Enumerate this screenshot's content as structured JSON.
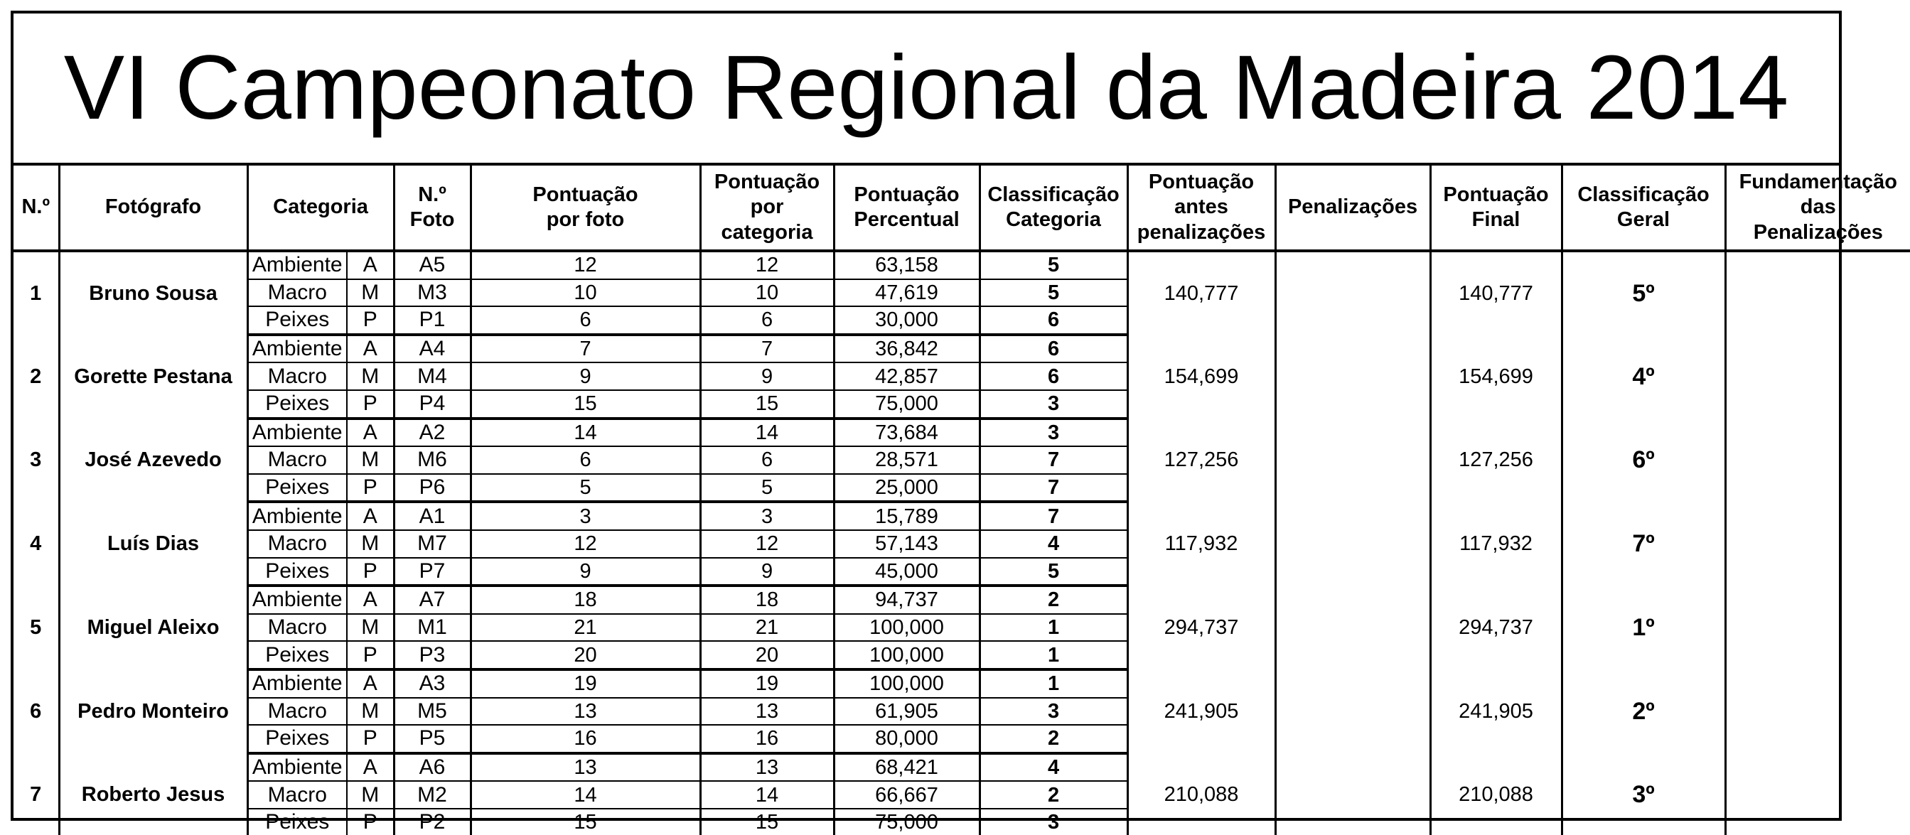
{
  "title": "VI Campeonato Regional da Madeira 2014",
  "headers": {
    "num": "N.º",
    "fotografo": "Fotógrafo",
    "categoria": "Categoria",
    "n_foto": [
      "N.º",
      "Foto"
    ],
    "pont_foto": [
      "Pontuação",
      "por foto"
    ],
    "pont_cat": [
      "Pontuação",
      "por",
      "categoria"
    ],
    "pont_perc": [
      "Pontuação",
      "Percentual"
    ],
    "class_cat": [
      "Classificação",
      "Categoria"
    ],
    "pont_antes": [
      "Pontuação",
      "antes",
      "penalizações"
    ],
    "penalizacoes": "Penalizações",
    "pont_final": [
      "Pontuação",
      "Final"
    ],
    "class_geral": [
      "Classificação",
      "Geral"
    ],
    "fundamentacao": [
      "Fundamentação",
      "das",
      "Penalizações"
    ]
  },
  "participants": [
    {
      "num": "1",
      "name": "Bruno Sousa",
      "before": "140,777",
      "penalty": "",
      "final": "140,777",
      "geral": "5º",
      "reason": "",
      "rows": [
        {
          "category": "Ambiente",
          "letter": "A",
          "code": "A5",
          "score_photo": "12",
          "score_cat": "12",
          "percent": "63,158",
          "class": "5"
        },
        {
          "category": "Macro",
          "letter": "M",
          "code": "M3",
          "score_photo": "10",
          "score_cat": "10",
          "percent": "47,619",
          "class": "5"
        },
        {
          "category": "Peixes",
          "letter": "P",
          "code": "P1",
          "score_photo": "6",
          "score_cat": "6",
          "percent": "30,000",
          "class": "6"
        }
      ]
    },
    {
      "num": "2",
      "name": "Gorette Pestana",
      "before": "154,699",
      "penalty": "",
      "final": "154,699",
      "geral": "4º",
      "reason": "",
      "rows": [
        {
          "category": "Ambiente",
          "letter": "A",
          "code": "A4",
          "score_photo": "7",
          "score_cat": "7",
          "percent": "36,842",
          "class": "6"
        },
        {
          "category": "Macro",
          "letter": "M",
          "code": "M4",
          "score_photo": "9",
          "score_cat": "9",
          "percent": "42,857",
          "class": "6"
        },
        {
          "category": "Peixes",
          "letter": "P",
          "code": "P4",
          "score_photo": "15",
          "score_cat": "15",
          "percent": "75,000",
          "class": "3"
        }
      ]
    },
    {
      "num": "3",
      "name": "José Azevedo",
      "before": "127,256",
      "penalty": "",
      "final": "127,256",
      "geral": "6º",
      "reason": "",
      "rows": [
        {
          "category": "Ambiente",
          "letter": "A",
          "code": "A2",
          "score_photo": "14",
          "score_cat": "14",
          "percent": "73,684",
          "class": "3"
        },
        {
          "category": "Macro",
          "letter": "M",
          "code": "M6",
          "score_photo": "6",
          "score_cat": "6",
          "percent": "28,571",
          "class": "7"
        },
        {
          "category": "Peixes",
          "letter": "P",
          "code": "P6",
          "score_photo": "5",
          "score_cat": "5",
          "percent": "25,000",
          "class": "7"
        }
      ]
    },
    {
      "num": "4",
      "name": "Luís Dias",
      "before": "117,932",
      "penalty": "",
      "final": "117,932",
      "geral": "7º",
      "reason": "",
      "rows": [
        {
          "category": "Ambiente",
          "letter": "A",
          "code": "A1",
          "score_photo": "3",
          "score_cat": "3",
          "percent": "15,789",
          "class": "7"
        },
        {
          "category": "Macro",
          "letter": "M",
          "code": "M7",
          "score_photo": "12",
          "score_cat": "12",
          "percent": "57,143",
          "class": "4"
        },
        {
          "category": "Peixes",
          "letter": "P",
          "code": "P7",
          "score_photo": "9",
          "score_cat": "9",
          "percent": "45,000",
          "class": "5"
        }
      ]
    },
    {
      "num": "5",
      "name": "Miguel Aleixo",
      "before": "294,737",
      "penalty": "",
      "final": "294,737",
      "geral": "1º",
      "reason": "",
      "rows": [
        {
          "category": "Ambiente",
          "letter": "A",
          "code": "A7",
          "score_photo": "18",
          "score_cat": "18",
          "percent": "94,737",
          "class": "2"
        },
        {
          "category": "Macro",
          "letter": "M",
          "code": "M1",
          "score_photo": "21",
          "score_cat": "21",
          "percent": "100,000",
          "class": "1"
        },
        {
          "category": "Peixes",
          "letter": "P",
          "code": "P3",
          "score_photo": "20",
          "score_cat": "20",
          "percent": "100,000",
          "class": "1"
        }
      ]
    },
    {
      "num": "6",
      "name": "Pedro Monteiro",
      "before": "241,905",
      "penalty": "",
      "final": "241,905",
      "geral": "2º",
      "reason": "",
      "rows": [
        {
          "category": "Ambiente",
          "letter": "A",
          "code": "A3",
          "score_photo": "19",
          "score_cat": "19",
          "percent": "100,000",
          "class": "1"
        },
        {
          "category": "Macro",
          "letter": "M",
          "code": "M5",
          "score_photo": "13",
          "score_cat": "13",
          "percent": "61,905",
          "class": "3"
        },
        {
          "category": "Peixes",
          "letter": "P",
          "code": "P5",
          "score_photo": "16",
          "score_cat": "16",
          "percent": "80,000",
          "class": "2"
        }
      ]
    },
    {
      "num": "7",
      "name": "Roberto Jesus",
      "before": "210,088",
      "penalty": "",
      "final": "210,088",
      "geral": "3º",
      "reason": "",
      "rows": [
        {
          "category": "Ambiente",
          "letter": "A",
          "code": "A6",
          "score_photo": "13",
          "score_cat": "13",
          "percent": "68,421",
          "class": "4"
        },
        {
          "category": "Macro",
          "letter": "M",
          "code": "M2",
          "score_photo": "14",
          "score_cat": "14",
          "percent": "66,667",
          "class": "2"
        },
        {
          "category": "Peixes",
          "letter": "P",
          "code": "P2",
          "score_photo": "15",
          "score_cat": "15",
          "percent": "75,000",
          "class": "3"
        }
      ]
    }
  ]
}
